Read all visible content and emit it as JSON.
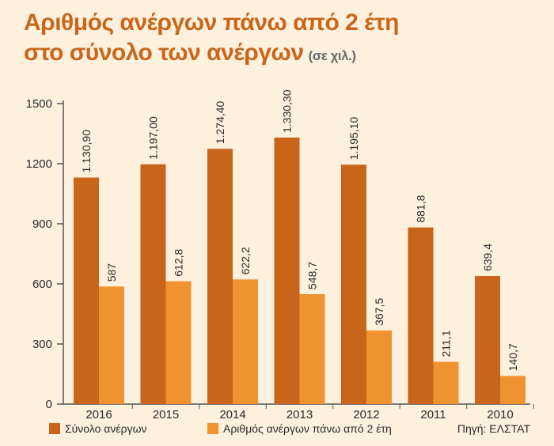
{
  "title_line1": "Αριθμός ανέργων πάνω από 2 έτη",
  "title_line2": "στο σύνολο των ανέργων",
  "title_unit": "(σε χιλ.)",
  "source": "Πηγή: ΕΛΣΤΑΤ",
  "colors": {
    "total": "#c9651b",
    "longterm": "#f0922f",
    "axis": "#555555"
  },
  "chart_data": {
    "type": "bar",
    "categories": [
      "2016",
      "2015",
      "2014",
      "2013",
      "2012",
      "2011",
      "2010"
    ],
    "series": [
      {
        "name": "Σύνολο ανέργων",
        "values": [
          1130.9,
          1197.0,
          1274.4,
          1330.3,
          1195.1,
          881.8,
          639.4
        ],
        "labels": [
          "1.130,90",
          "1.197,00",
          "1.274,40",
          "1.330,30",
          "1.195,10",
          "881,8",
          "639,4"
        ]
      },
      {
        "name": "Αριθμός ανέργων πάνω από 2 έτη",
        "values": [
          587,
          612.8,
          622.2,
          548.7,
          367.5,
          211.1,
          140.7
        ],
        "labels": [
          "587",
          "612,8",
          "622,2",
          "548,7",
          "367,5",
          "211,1",
          "140,7"
        ]
      }
    ],
    "yticks": [
      0,
      300,
      600,
      900,
      1200,
      1500
    ],
    "ylim": [
      0,
      1500
    ]
  }
}
